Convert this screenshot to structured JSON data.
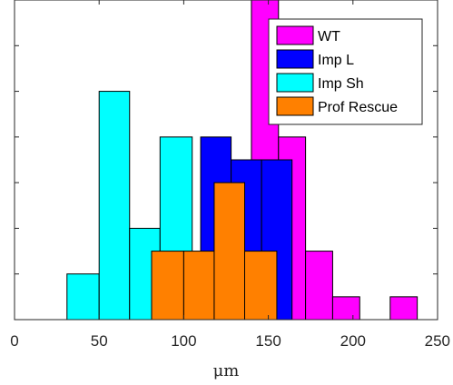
{
  "chart_data": {
    "type": "histogram",
    "xlabel": "μm",
    "ylabel": "",
    "title": "",
    "xlim": [
      0,
      250
    ],
    "ylim": [
      0,
      14
    ],
    "xticks": [
      "0",
      "50",
      "100",
      "150",
      "200",
      "250"
    ],
    "grid": false,
    "legend_position": "top-right",
    "series": [
      {
        "name": "WT",
        "color": "#ff00ff",
        "bins": [
          {
            "x0": 140,
            "x1": 156,
            "count": 14
          },
          {
            "x0": 156,
            "x1": 172,
            "count": 8
          },
          {
            "x0": 172,
            "x1": 188,
            "count": 3
          },
          {
            "x0": 188,
            "x1": 204,
            "count": 1
          },
          {
            "x0": 222,
            "x1": 238,
            "count": 1
          }
        ]
      },
      {
        "name": "Imp L",
        "color": "#0000ff",
        "bins": [
          {
            "x0": 110,
            "x1": 128,
            "count": 8
          },
          {
            "x0": 128,
            "x1": 146,
            "count": 7
          },
          {
            "x0": 146,
            "x1": 164,
            "count": 7
          }
        ]
      },
      {
        "name": "Imp Sh",
        "color": "#00ffff",
        "bins": [
          {
            "x0": 31,
            "x1": 50,
            "count": 2
          },
          {
            "x0": 50,
            "x1": 68,
            "count": 10
          },
          {
            "x0": 68,
            "x1": 86,
            "count": 4
          },
          {
            "x0": 86,
            "x1": 105,
            "count": 8
          }
        ]
      },
      {
        "name": "Prof Rescue",
        "color": "#ff8000",
        "bins": [
          {
            "x0": 81,
            "x1": 100,
            "count": 3
          },
          {
            "x0": 100,
            "x1": 118,
            "count": 3
          },
          {
            "x0": 118,
            "x1": 136,
            "count": 6
          },
          {
            "x0": 136,
            "x1": 155,
            "count": 3
          }
        ]
      }
    ]
  }
}
